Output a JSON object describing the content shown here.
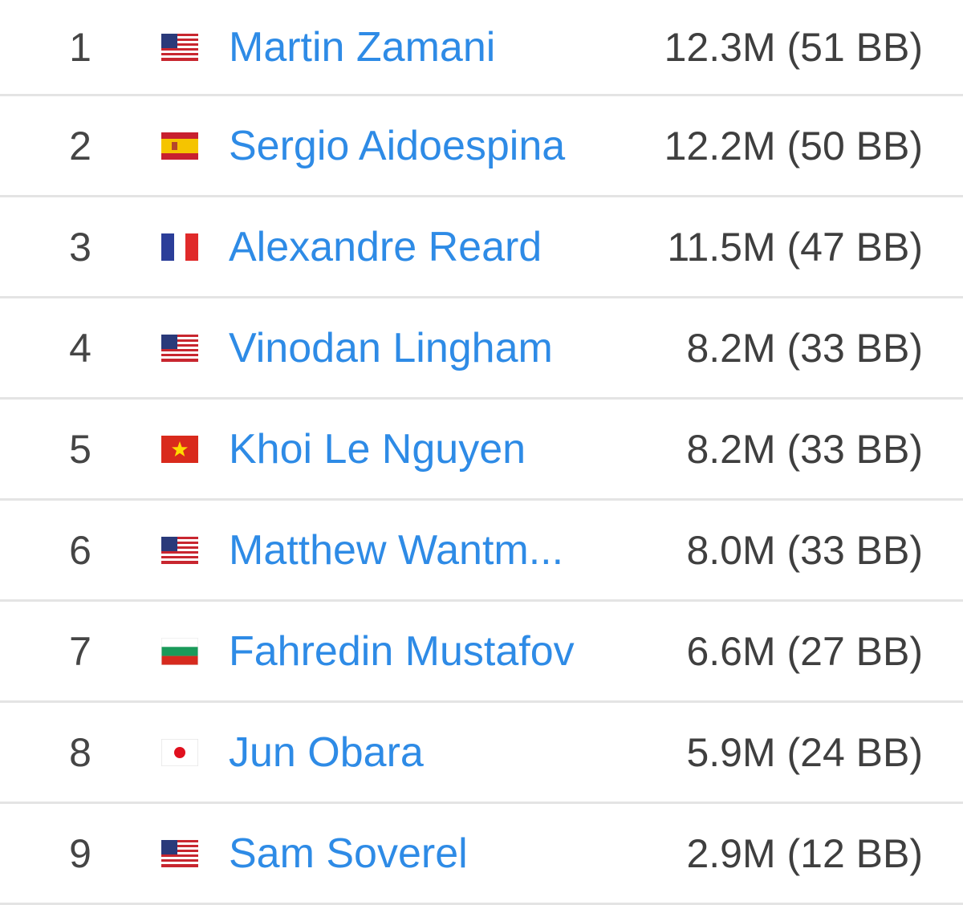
{
  "leaderboard": {
    "rows": [
      {
        "rank": "1",
        "flag": "us-flag-icon",
        "name": "Martin Zamani",
        "stack": "12.3M (51 BB)"
      },
      {
        "rank": "2",
        "flag": "spain-flag-icon",
        "name": "Sergio Aidoespina",
        "stack": "12.2M (50 BB)"
      },
      {
        "rank": "3",
        "flag": "france-flag-icon",
        "name": "Alexandre Reard",
        "stack": "11.5M (47 BB)"
      },
      {
        "rank": "4",
        "flag": "us-flag-icon",
        "name": "Vinodan Lingham",
        "stack": "8.2M (33 BB)"
      },
      {
        "rank": "5",
        "flag": "vietnam-flag-icon",
        "name": "Khoi Le Nguyen",
        "stack": "8.2M (33 BB)"
      },
      {
        "rank": "6",
        "flag": "us-flag-icon",
        "name": "Matthew Wantm...",
        "stack": "8.0M (33 BB)"
      },
      {
        "rank": "7",
        "flag": "bulgaria-flag-icon",
        "name": "Fahredin Mustafov",
        "stack": "6.6M (27 BB)"
      },
      {
        "rank": "8",
        "flag": "japan-flag-icon",
        "name": "Jun Obara",
        "stack": "5.9M (24 BB)"
      },
      {
        "rank": "9",
        "flag": "us-flag-icon",
        "name": "Sam Soverel",
        "stack": "2.9M (12 BB)"
      }
    ]
  },
  "colors": {
    "name_link": "#2e8be6",
    "rank_text": "#454545",
    "stack_text": "#3f3f3f",
    "divider": "#e4e4e4"
  }
}
